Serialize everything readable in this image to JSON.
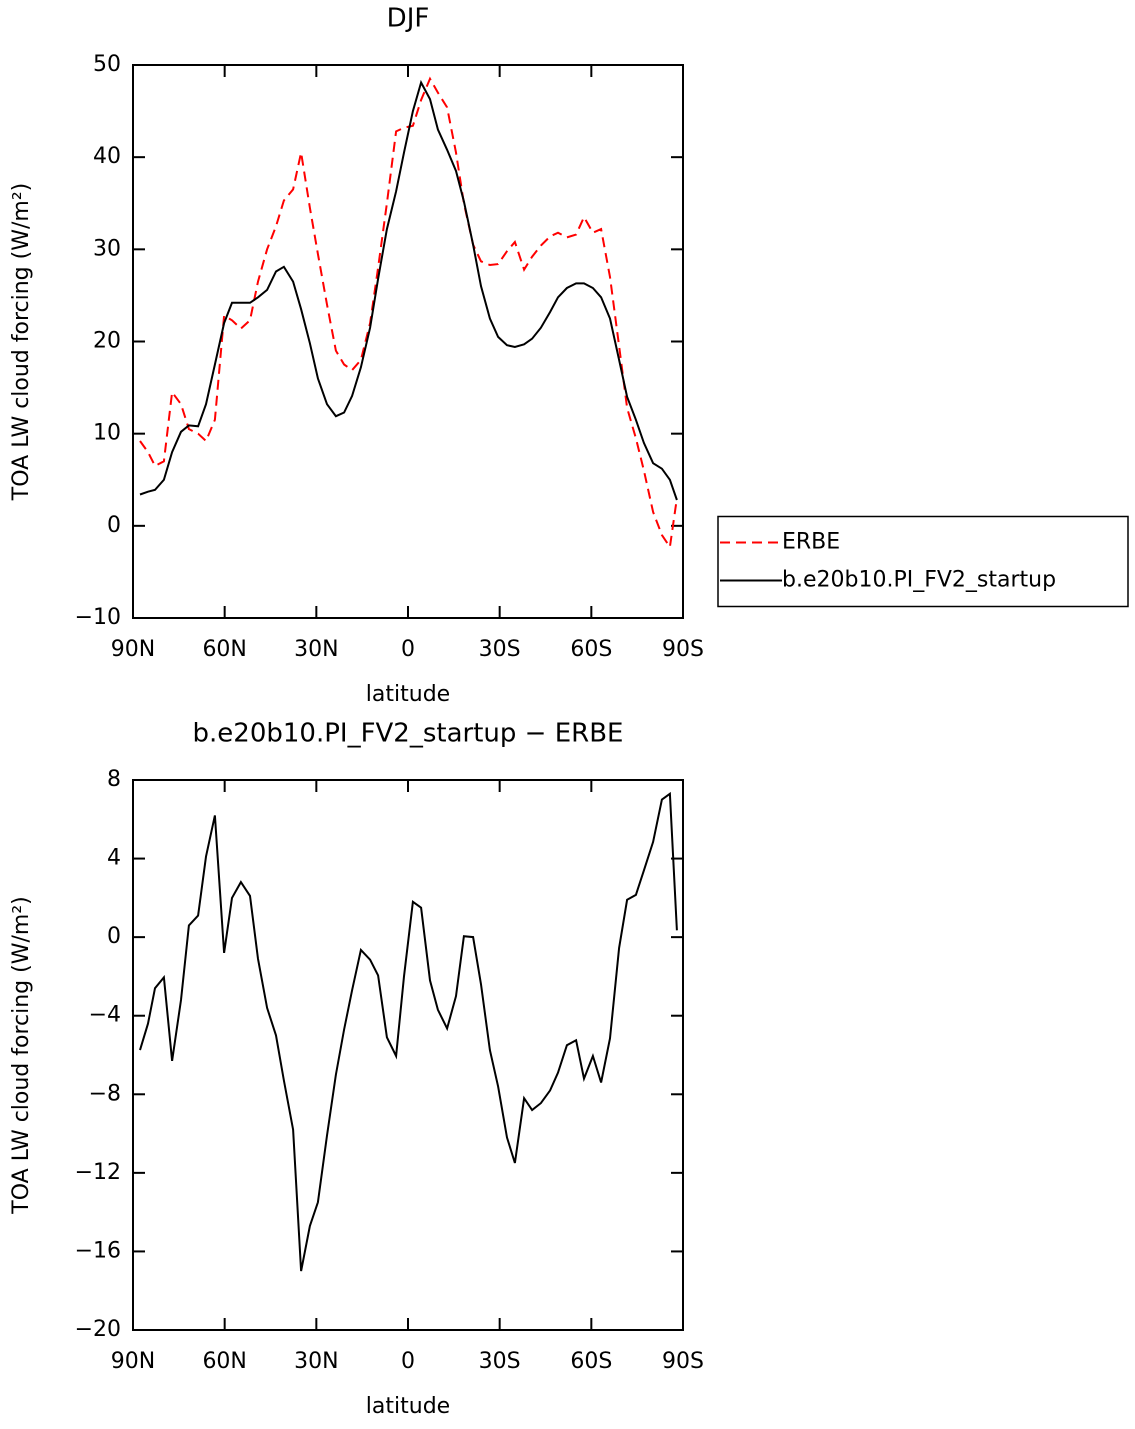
{
  "chart_data": [
    {
      "type": "line",
      "title": "DJF",
      "xlabel": "latitude",
      "ylabel": "TOA LW cloud forcing (W/m²)",
      "xlim": [
        90,
        -90
      ],
      "ylim": [
        -10,
        50
      ],
      "xticks": [
        {
          "value": 90,
          "label": "90N"
        },
        {
          "value": 60,
          "label": "60N"
        },
        {
          "value": 30,
          "label": "30N"
        },
        0,
        {
          "value": -30,
          "label": "30S"
        },
        {
          "value": -60,
          "label": "60S"
        },
        {
          "value": -90,
          "label": "90S"
        }
      ],
      "yticks": [
        {
          "value": -10,
          "label": "−10"
        },
        0,
        10,
        20,
        30,
        40,
        50
      ],
      "legend": "outside-right",
      "x": [
        87.7,
        85.1,
        82.8,
        79.9,
        77.2,
        74.3,
        71.7,
        68.7,
        66.1,
        63.2,
        60.2,
        57.6,
        54.7,
        51.7,
        49.1,
        46.1,
        43.2,
        40.6,
        37.6,
        35.0,
        32.1,
        29.5,
        26.5,
        23.6,
        20.9,
        18.3,
        15.4,
        12.4,
        9.8,
        6.9,
        3.9,
        1.3,
        -1.6,
        -4.3,
        -7.2,
        -9.8,
        -12.8,
        -15.7,
        -18.3,
        -21.3,
        -23.9,
        -26.8,
        -29.5,
        -32.4,
        -35.0,
        -38.0,
        -40.6,
        -43.5,
        -46.5,
        -49.1,
        -52.0,
        -55.0,
        -57.6,
        -60.5,
        -63.2,
        -66.1,
        -69.1,
        -71.7,
        -74.6,
        -77.2,
        -80.2,
        -83.1,
        -85.7,
        -88.0
      ],
      "series": [
        {
          "name": "ERBE",
          "color": "#ff0000",
          "linestyle": "dashed",
          "values": [
            9.2,
            8,
            6.5,
            7,
            14.5,
            13.2,
            10.5,
            10,
            9.2,
            11.5,
            22.8,
            22.3,
            21.4,
            22.3,
            26.5,
            30,
            32.5,
            35.3,
            36.5,
            40.5,
            34.5,
            29.5,
            24,
            19,
            17.5,
            16.9,
            18,
            22,
            28,
            35,
            42.8,
            43.2,
            43.4,
            46.2,
            48.5,
            47,
            45.4,
            40.5,
            35,
            30.5,
            28.7,
            28.3,
            28.4,
            29.8,
            30.8,
            27.8,
            29.2,
            30.4,
            31.4,
            31.8,
            31.3,
            31.6,
            33.5,
            31.8,
            32.2,
            27,
            19.5,
            12.8,
            9.5,
            6,
            1.5,
            -1,
            -2.3,
            3
          ]
        },
        {
          "name": "b.e20b10.PI_FV2_startup",
          "color": "#000000",
          "linestyle": "solid",
          "values": [
            3.4,
            3.7,
            3.9,
            5,
            8,
            10.2,
            10.9,
            10.8,
            13.2,
            17.5,
            22,
            24.2,
            24.2,
            24.2,
            24.8,
            25.6,
            27.6,
            28.1,
            26.5,
            23.5,
            19.8,
            16,
            13.2,
            11.9,
            12.3,
            14.1,
            17.2,
            21.5,
            26.8,
            32.2,
            36.3,
            40.5,
            45,
            48.1,
            46.3,
            43,
            40.8,
            38.5,
            35.2,
            30.5,
            26,
            22.5,
            20.5,
            19.6,
            19.4,
            19.7,
            20.3,
            21.5,
            23.2,
            24.8,
            25.8,
            26.3,
            26.3,
            25.8,
            24.8,
            22.5,
            18,
            14,
            11.5,
            9,
            6.8,
            6.2,
            5,
            2.8
          ]
        }
      ]
    },
    {
      "type": "line",
      "title": "b.e20b10.PI_FV2_startup − ERBE",
      "xlabel": "latitude",
      "ylabel": "TOA LW cloud forcing (W/m²)",
      "xlim": [
        90,
        -90
      ],
      "ylim": [
        -20,
        8
      ],
      "xticks": [
        {
          "value": 90,
          "label": "90N"
        },
        {
          "value": 60,
          "label": "60N"
        },
        {
          "value": 30,
          "label": "30N"
        },
        0,
        {
          "value": -30,
          "label": "30S"
        },
        {
          "value": -60,
          "label": "60S"
        },
        {
          "value": -90,
          "label": "90S"
        }
      ],
      "yticks": [
        {
          "value": -20,
          "label": "−20"
        },
        {
          "value": -16,
          "label": "−16"
        },
        {
          "value": -12,
          "label": "−12"
        },
        {
          "value": -8,
          "label": "−8"
        },
        {
          "value": -4,
          "label": "−4"
        },
        0,
        4,
        8
      ],
      "x": [
        87.7,
        85.1,
        82.8,
        79.9,
        77.2,
        74.3,
        71.7,
        68.7,
        66.1,
        63.2,
        60.2,
        57.6,
        54.7,
        51.7,
        49.1,
        46.1,
        43.2,
        40.6,
        37.6,
        35.0,
        32.1,
        29.5,
        26.5,
        23.6,
        20.9,
        18.3,
        15.4,
        12.4,
        9.8,
        6.9,
        3.9,
        1.3,
        -1.6,
        -4.3,
        -7.2,
        -9.8,
        -12.8,
        -15.7,
        -18.3,
        -21.3,
        -23.9,
        -26.8,
        -29.5,
        -32.4,
        -35.0,
        -38.0,
        -40.6,
        -43.5,
        -46.5,
        -49.1,
        -52.0,
        -55.0,
        -57.6,
        -60.5,
        -63.2,
        -66.1,
        -69.1,
        -71.7,
        -74.6,
        -77.2,
        -80.2,
        -83.1,
        -85.7,
        -88.0
      ],
      "color": "#000000",
      "values": [
        -5.75,
        -4.4,
        -2.6,
        -2.05,
        -6.3,
        -3.2,
        0.6,
        1.1,
        4.1,
        6.2,
        -0.8,
        2,
        2.8,
        2.1,
        -1.1,
        -3.6,
        -5,
        -7.3,
        -9.8,
        -17,
        -14.7,
        -13.5,
        -10.1,
        -7,
        -4.7,
        -2.7,
        -0.65,
        -1.15,
        -1.95,
        -5.1,
        -6.05,
        -2,
        1.8,
        1.5,
        -2.2,
        -3.7,
        -4.65,
        -3,
        0.05,
        0,
        -2.4,
        -5.75,
        -7.6,
        -10.2,
        -11.5,
        -8.2,
        -8.8,
        -8.45,
        -7.8,
        -6.9,
        -5.5,
        -5.25,
        -7.2,
        -6.05,
        -7.4,
        -5.15,
        -0.55,
        1.9,
        2.15,
        3.4,
        4.85,
        7,
        7.3,
        0.35
      ]
    }
  ]
}
